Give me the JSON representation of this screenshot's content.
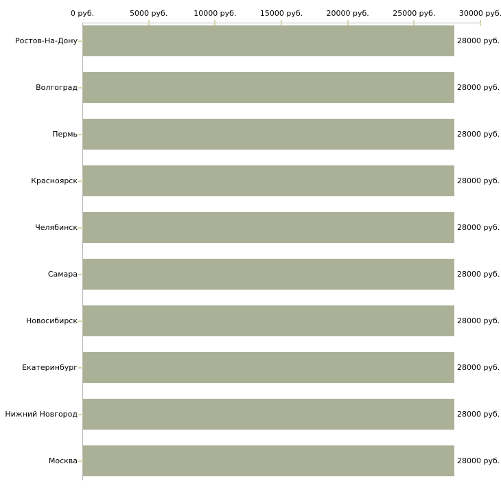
{
  "chart_data": {
    "type": "bar",
    "orientation": "horizontal",
    "title": "",
    "categories": [
      "Ростов-На-Дону",
      "Волгоград",
      "Пермь",
      "Красноярск",
      "Челябинск",
      "Самара",
      "Новосибирск",
      "Екатеринбург",
      "Нижний Новгород",
      "Москва"
    ],
    "values": [
      28000,
      28000,
      28000,
      28000,
      28000,
      28000,
      28000,
      28000,
      28000,
      28000
    ],
    "value_labels": [
      "28000 руб.",
      "28000 руб.",
      "28000 руб.",
      "28000 руб.",
      "28000 руб.",
      "28000 руб.",
      "28000 руб.",
      "28000 руб.",
      "28000 руб.",
      "28000 руб."
    ],
    "x_axis": {
      "position": "top",
      "xlim": [
        0,
        30000
      ],
      "tick_values": [
        0,
        5000,
        10000,
        15000,
        20000,
        25000,
        30000
      ],
      "tick_labels": [
        "0 руб.",
        "5000 руб.",
        "10000 руб.",
        "15000 руб.",
        "20000 руб.",
        "25000 руб.",
        "30000 руб."
      ]
    },
    "grid": false,
    "legend": false,
    "colors": {
      "bar": "#abb197",
      "axis_line": "#b4b4b4",
      "tick_mark": "#d9d6ad",
      "text": "#000000",
      "background": "#ffffff"
    }
  }
}
